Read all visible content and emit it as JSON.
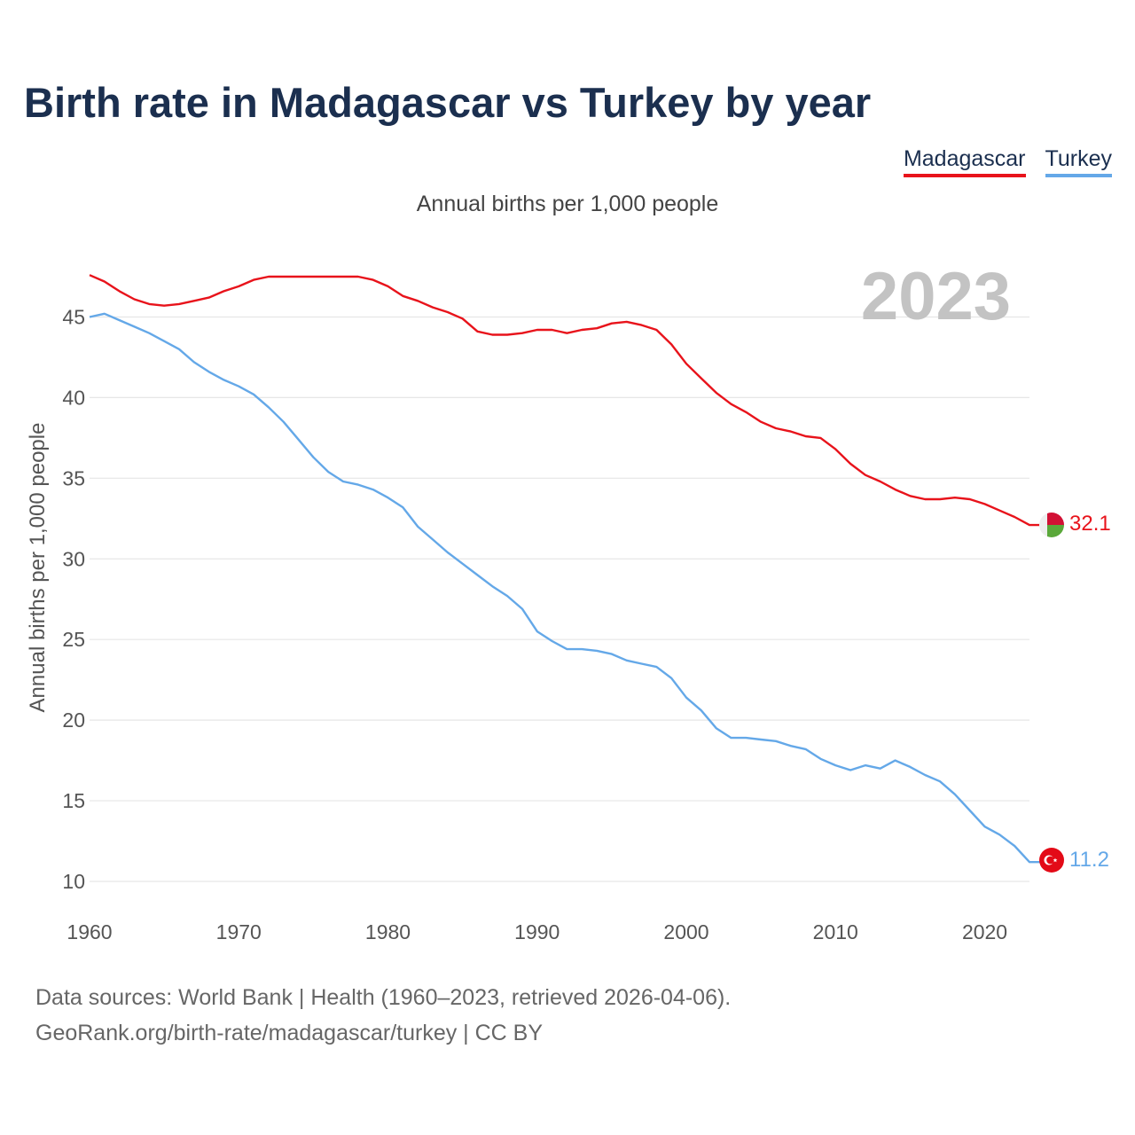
{
  "title": "Birth rate in Madagascar vs Turkey by year",
  "subtitle": "Annual births per 1,000 people",
  "year_display": "2023",
  "footer": {
    "line1": "Data sources: World Bank | Health (1960–2023, retrieved 2026-04-06).",
    "line2": "GeoRank.org/birth-rate/madagascar/turkey | CC BY"
  },
  "colors": {
    "madagascar": "#e8131b",
    "turkey": "#64a8e8",
    "grid": "#e6e6e6",
    "title": "#1b2f4f"
  },
  "chart_data": {
    "type": "line",
    "title": "Birth rate in Madagascar vs Turkey by year",
    "subtitle": "Annual births per 1,000 people",
    "ylabel": "Annual births per 1,000 people",
    "xlabel": "",
    "xlim": [
      1960,
      2023
    ],
    "ylim": [
      10,
      47.5
    ],
    "x_ticks": [
      1960,
      1970,
      1980,
      1990,
      2000,
      2010,
      2020
    ],
    "y_ticks": [
      10,
      15,
      20,
      25,
      30,
      35,
      40,
      45
    ],
    "legend_position": "top-right",
    "years": [
      1960,
      1961,
      1962,
      1963,
      1964,
      1965,
      1966,
      1967,
      1968,
      1969,
      1970,
      1971,
      1972,
      1973,
      1974,
      1975,
      1976,
      1977,
      1978,
      1979,
      1980,
      1981,
      1982,
      1983,
      1984,
      1985,
      1986,
      1987,
      1988,
      1989,
      1990,
      1991,
      1992,
      1993,
      1994,
      1995,
      1996,
      1997,
      1998,
      1999,
      2000,
      2001,
      2002,
      2003,
      2004,
      2005,
      2006,
      2007,
      2008,
      2009,
      2010,
      2011,
      2012,
      2013,
      2014,
      2015,
      2016,
      2017,
      2018,
      2019,
      2020,
      2021,
      2022,
      2023
    ],
    "series": [
      {
        "name": "Madagascar",
        "color": "#e8131b",
        "end_label": "32.1",
        "values": [
          47.6,
          47.2,
          46.6,
          46.1,
          45.8,
          45.7,
          45.8,
          46.0,
          46.2,
          46.6,
          46.9,
          47.3,
          47.5,
          47.5,
          47.5,
          47.5,
          47.5,
          47.5,
          47.5,
          47.3,
          46.9,
          46.3,
          46.0,
          45.6,
          45.3,
          44.9,
          44.1,
          43.9,
          43.9,
          44.0,
          44.2,
          44.2,
          44.0,
          44.2,
          44.3,
          44.6,
          44.7,
          44.5,
          44.2,
          43.3,
          42.1,
          41.2,
          40.3,
          39.6,
          39.1,
          38.5,
          38.1,
          37.9,
          37.6,
          37.5,
          36.8,
          35.9,
          35.2,
          34.8,
          34.3,
          33.9,
          33.7,
          33.7,
          33.8,
          33.7,
          33.4,
          33.0,
          32.6,
          32.1
        ]
      },
      {
        "name": "Turkey",
        "color": "#64a8e8",
        "end_label": "11.2",
        "values": [
          45.0,
          45.2,
          44.8,
          44.4,
          44.0,
          43.5,
          43.0,
          42.2,
          41.6,
          41.1,
          40.7,
          40.2,
          39.4,
          38.5,
          37.4,
          36.3,
          35.4,
          34.8,
          34.6,
          34.3,
          33.8,
          33.2,
          32.0,
          31.2,
          30.4,
          29.7,
          29.0,
          28.3,
          27.7,
          26.9,
          25.5,
          24.9,
          24.4,
          24.4,
          24.3,
          24.1,
          23.7,
          23.5,
          23.3,
          22.6,
          21.4,
          20.6,
          19.5,
          18.9,
          18.9,
          18.8,
          18.7,
          18.4,
          18.2,
          17.6,
          17.2,
          16.9,
          17.2,
          17.0,
          17.5,
          17.1,
          16.6,
          16.2,
          15.4,
          14.4,
          13.4,
          12.9,
          12.2,
          11.2
        ]
      }
    ]
  }
}
